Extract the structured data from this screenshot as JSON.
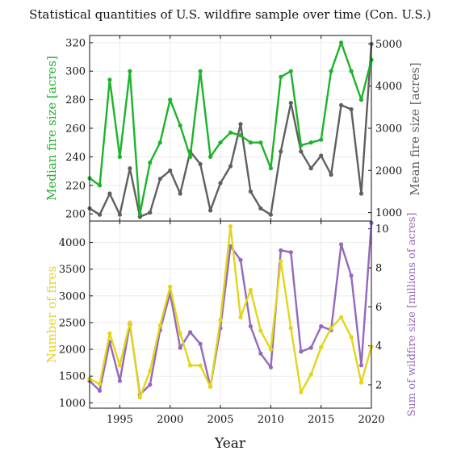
{
  "title": "Statistical quantities of U.S. wildfire sample over time (Con. U.S.)",
  "xlabel": "Year",
  "chart_data": [
    {
      "type": "line",
      "panel": "top",
      "grid": true,
      "x": [
        1992,
        1993,
        1994,
        1995,
        1996,
        1997,
        1998,
        1999,
        2000,
        2001,
        2002,
        2003,
        2004,
        2005,
        2006,
        2007,
        2008,
        2009,
        2010,
        2011,
        2012,
        2013,
        2014,
        2015,
        2016,
        2017,
        2018,
        2019,
        2020
      ],
      "xlim": [
        1992,
        2020
      ],
      "xticks": [
        1995,
        2000,
        2005,
        2010,
        2015,
        2020
      ],
      "left_axis": {
        "label": "Median fire size [acres]",
        "color": "#1db32a",
        "ylim": [
          195,
          325
        ],
        "ticks": [
          200,
          220,
          240,
          260,
          280,
          300,
          320
        ]
      },
      "right_axis": {
        "label": "Mean fire size [acres]",
        "color": "#5f5f5f",
        "ylim": [
          800,
          5200
        ],
        "ticks": [
          1000,
          2000,
          3000,
          4000,
          5000
        ]
      },
      "series": [
        {
          "axis": "left",
          "color": "#1db32a",
          "values": [
            225,
            220,
            294,
            240,
            300,
            200,
            236,
            250,
            280,
            262,
            240,
            300,
            240,
            250,
            257,
            255,
            250,
            250,
            232,
            296,
            300,
            248,
            250,
            252,
            300,
            320,
            300,
            280,
            308
          ]
        },
        {
          "axis": "right",
          "color": "#5f5f5f",
          "values": [
            1100,
            950,
            1450,
            950,
            2050,
            900,
            1000,
            1800,
            2000,
            1450,
            2450,
            2150,
            1050,
            1700,
            2100,
            3100,
            1500,
            1100,
            950,
            2450,
            3600,
            2450,
            2050,
            2350,
            1900,
            3550,
            3450,
            1450,
            5000
          ]
        }
      ]
    },
    {
      "type": "line",
      "panel": "bottom",
      "grid": true,
      "x": [
        1992,
        1993,
        1994,
        1995,
        1996,
        1997,
        1998,
        1999,
        2000,
        2001,
        2002,
        2003,
        2004,
        2005,
        2006,
        2007,
        2008,
        2009,
        2010,
        2011,
        2012,
        2013,
        2014,
        2015,
        2016,
        2017,
        2018,
        2019,
        2020
      ],
      "xlim": [
        1992,
        2020
      ],
      "xticks": [
        1995,
        2000,
        2005,
        2010,
        2015,
        2020
      ],
      "left_axis": {
        "label": "Number of fires",
        "color": "#e3d51a",
        "ylim": [
          900,
          4400
        ],
        "ticks": [
          1000,
          1500,
          2000,
          2500,
          3000,
          3500,
          4000
        ]
      },
      "right_axis": {
        "label": "Sum of wildfire size [millions of acres]",
        "color": "#9568bd",
        "ylim": [
          0.8,
          10.4
        ],
        "ticks": [
          2,
          4,
          6,
          8,
          10
        ]
      },
      "series": [
        {
          "axis": "left",
          "color": "#e3d51a",
          "values": [
            1450,
            1350,
            2300,
            1700,
            2500,
            1100,
            1600,
            2450,
            3170,
            2300,
            1700,
            1700,
            1300,
            2550,
            4300,
            2600,
            3110,
            2350,
            2000,
            3650,
            2400,
            1200,
            1530,
            2040,
            2400,
            2600,
            2230,
            1380,
            2050
          ]
        },
        {
          "axis": "right",
          "color": "#9568bd",
          "values": [
            2.2,
            1.7,
            4.2,
            2.2,
            5.1,
            1.5,
            2.0,
            4.8,
            6.7,
            3.9,
            4.7,
            4.1,
            1.9,
            4.9,
            9.1,
            8.4,
            5.0,
            3.6,
            2.9,
            8.9,
            8.8,
            3.7,
            3.9,
            5.0,
            4.8,
            9.2,
            7.6,
            3.0,
            10.3
          ]
        }
      ]
    }
  ]
}
